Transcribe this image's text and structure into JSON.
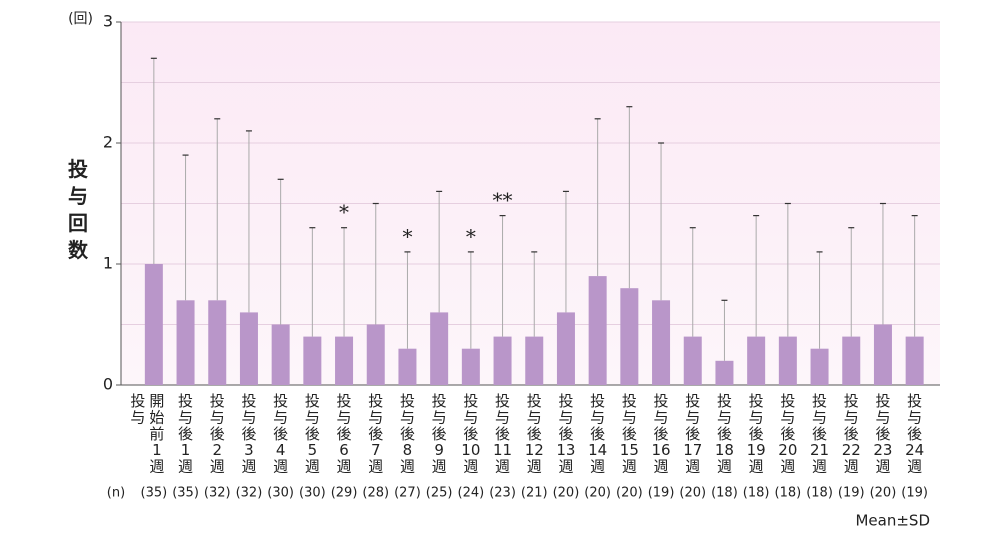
{
  "chart_data": {
    "type": "bar",
    "y_label": "投与回数",
    "y_unit": "(回)",
    "categories": [
      "投与開始前1週",
      "投与後1週",
      "投与後2週",
      "投与後3週",
      "投与後4週",
      "投与後5週",
      "投与後6週",
      "投与後7週",
      "投与後8週",
      "投与後9週",
      "投与後10週",
      "投与後11週",
      "投与後12週",
      "投与後13週",
      "投与後14週",
      "投与後15週",
      "投与後16週",
      "投与後17週",
      "投与後18週",
      "投与後19週",
      "投与後20週",
      "投与後21週",
      "投与後22週",
      "投与後23週",
      "投与後24週"
    ],
    "values": [
      1.0,
      0.7,
      0.7,
      0.6,
      0.5,
      0.4,
      0.4,
      0.5,
      0.3,
      0.6,
      0.3,
      0.4,
      0.4,
      0.6,
      0.9,
      0.8,
      0.7,
      0.4,
      0.2,
      0.4,
      0.4,
      0.3,
      0.4,
      0.5,
      0.4
    ],
    "errors": [
      1.7,
      1.2,
      1.5,
      1.5,
      1.2,
      0.9,
      0.9,
      1.0,
      0.8,
      1.0,
      0.8,
      1.0,
      0.7,
      1.0,
      1.3,
      1.5,
      1.3,
      0.9,
      0.5,
      1.0,
      1.1,
      0.8,
      0.9,
      1.0,
      1.0
    ],
    "significance": [
      null,
      null,
      null,
      null,
      null,
      null,
      "*",
      null,
      "*",
      null,
      "*",
      "**",
      null,
      null,
      null,
      null,
      null,
      null,
      null,
      null,
      null,
      null,
      null,
      null,
      null
    ],
    "n_title": "(n)",
    "n_labels": [
      "(35)",
      "(35)",
      "(32)",
      "(32)",
      "(30)",
      "(30)",
      "(29)",
      "(28)",
      "(27)",
      "(25)",
      "(24)",
      "(23)",
      "(21)",
      "(20)",
      "(20)",
      "(20)",
      "(19)",
      "(20)",
      "(18)",
      "(18)",
      "(18)",
      "(18)",
      "(19)",
      "(20)",
      "(19)"
    ],
    "note": "Mean±SD",
    "color": "#b996c9",
    "ylim": [
      0,
      3
    ],
    "yticks": [
      0,
      1,
      2,
      3
    ],
    "minor_gridlines": [
      0.5,
      1.5,
      2.5
    ],
    "grid": true
  }
}
